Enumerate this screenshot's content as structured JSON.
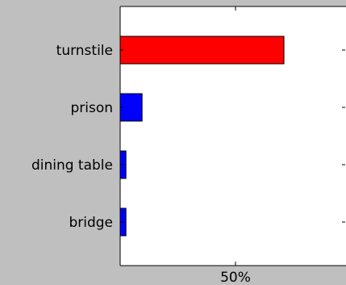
{
  "chart_data": {
    "type": "bar",
    "orientation": "horizontal",
    "categories": [
      "turnstile",
      "prison",
      "dining table",
      "bridge"
    ],
    "values": [
      0.71,
      0.095,
      0.025,
      0.025
    ],
    "colors": [
      "#ff0000",
      "#0000ff",
      "#0000ff",
      "#0000ff"
    ],
    "xlim": [
      0,
      1
    ],
    "xticks": [
      {
        "value": 0.5,
        "label": "50%"
      }
    ],
    "grid": false,
    "legend": "none"
  }
}
